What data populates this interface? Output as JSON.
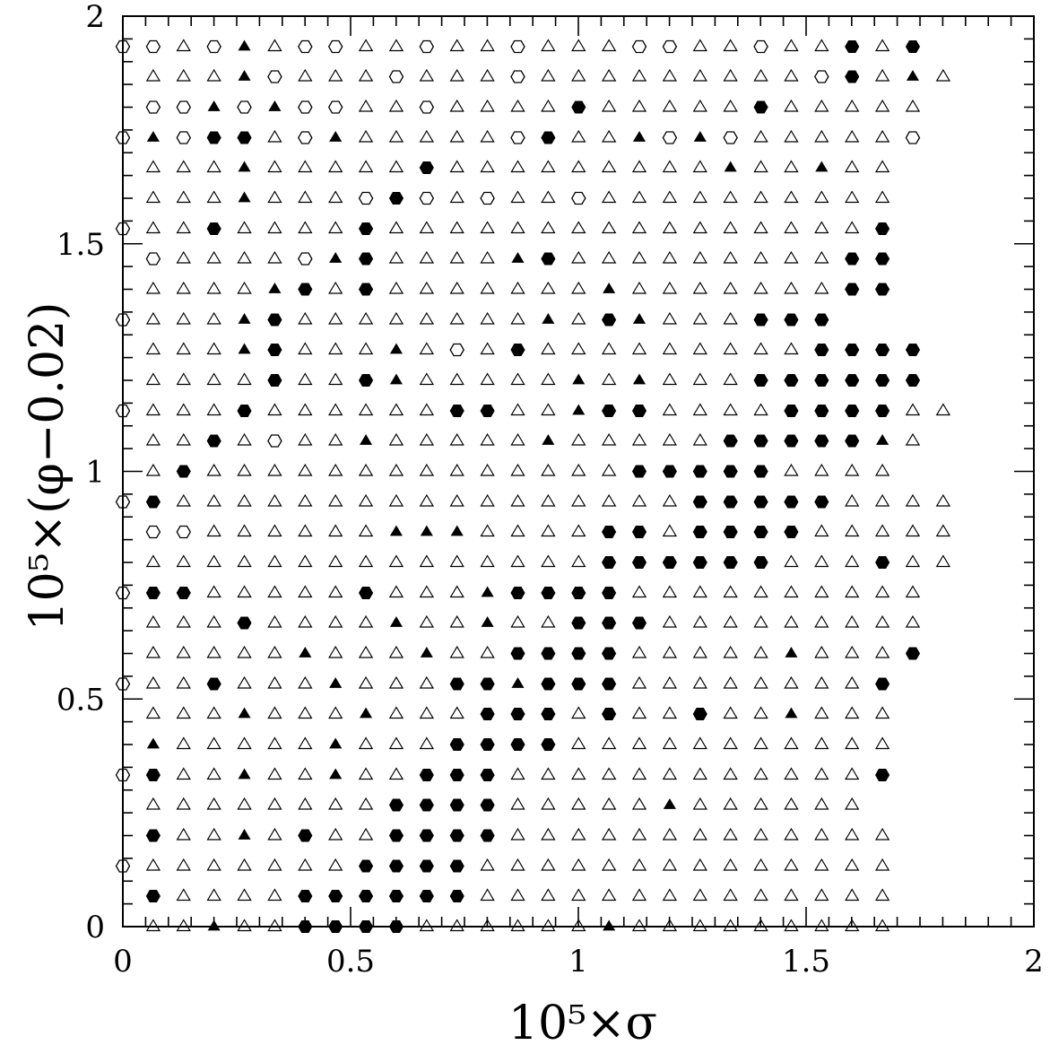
{
  "chart_data": {
    "type": "scatter",
    "title": "",
    "xlabel": "10⁵×σ",
    "ylabel": "10⁵×(φ−0.02)",
    "xlim": [
      0,
      2
    ],
    "ylim": [
      0,
      2
    ],
    "xticks": [
      "0",
      "0.5",
      "1",
      "1.5",
      "2"
    ],
    "yticks": [
      "0",
      "0.5",
      "1",
      "1.5",
      "2"
    ],
    "grid": false,
    "legend": "none",
    "grid_step": 0.0667,
    "rows": [
      "oO ##^^++^^^^^^+^^^+++^+++++++^^^^^+++^",
      "",
      "",
      "",
      ""
    ],
    "marker_codes": {
      "o": "open hexagon",
      "O": "filled hexagon",
      "^": "open triangle",
      "+": "filled triangle"
    },
    "points": {
      "note_rows_from_top_y": [
        1.933,
        1.867,
        1.8,
        1.733,
        1.667,
        1.6,
        1.533,
        1.467,
        1.4,
        1.333,
        1.267,
        1.2,
        1.133,
        1.067,
        1.0,
        0.933,
        0.867,
        0.8,
        0.733,
        0.667,
        0.6,
        0.533,
        0.467,
        0.4,
        0.333,
        0.267,
        0.2,
        0.133,
        0.067,
        0.0
      ],
      "grid": [
        "o^o+^oo^^o^^o^^^oo^^o^^O^O",
        "^^^+o^^^o^^^o^^^^^^^^^oO^+^",
        "oo+o+oo^^o^^^^O^^^^^O^^^^^",
        "+oOO^o+^^^^^oO^^+o+o^^^^^o",
        "^^^+^^^^^O^^^^^^^^^+^^+^^",
        "^^^+^^^oOo^o^^o^^^^^^^^^^",
        "^^O^^^^O^^^^^^^^^^^^^^^^O",
        "o^^^^o+O^^^^+O^^^^^^^^^OO",
        "^^^^+O^O^^^^^^^+^^^^^^^OO",
        "^^^+O^^^^^^^^+^O+^^^OOO",
        "^^^+O^^^+^o^O^^^^^^^^^OOOO",
        "^^^^O^^O+^^^^^+^+^^^OOOOOO",
        "^^^O^^^^^^OO^^+OO^^^^OOOO^^",
        "^^O^o^^+^^^^^+^^^^^OOOOO+^",
        "^O^^^^^^^^^^^^^^OOOOO^^^^",
        "O^^^^^^^^^^^^^^^^^OOOOO^^^^",
        "oo^^^^^^+++^^^^OO^OOOO^^^^^",
        "^^^^^^^^^^^^^^^OOOOOO^^^O^^",
        "OO^^^^^O^^^+OOOO^^^^^^^^^^",
        "^^^O^^^^+^^+^^OOO^^^^^^^^^",
        "^^^^^+^^^+^^OOOO^^^^^+^^^O",
        "^^O^^^+^^^OO+OOO^^^^^^^^O",
        "^^^+^^^+^^^OOO^O^^O^^+^^^",
        "+^^^^^+^^^OOOO^^^^^^^^^^^",
        "O^^+^^+^^OOO^^^^^^^^^^^^O",
        "^^^^^^^^OOOO^^^^^+^^^^^^",
        "O^^+^O^^OOOO^^^^^^^^^^^^^",
        "^^^^^^^OOOO^^^^^^^^^^^^^^",
        "O^^^^OOOOOO^^^^^^^^^^^^^^",
        "^^+^^OOOO^^^^^^+^^^^^^^^^"
      ]
    }
  }
}
